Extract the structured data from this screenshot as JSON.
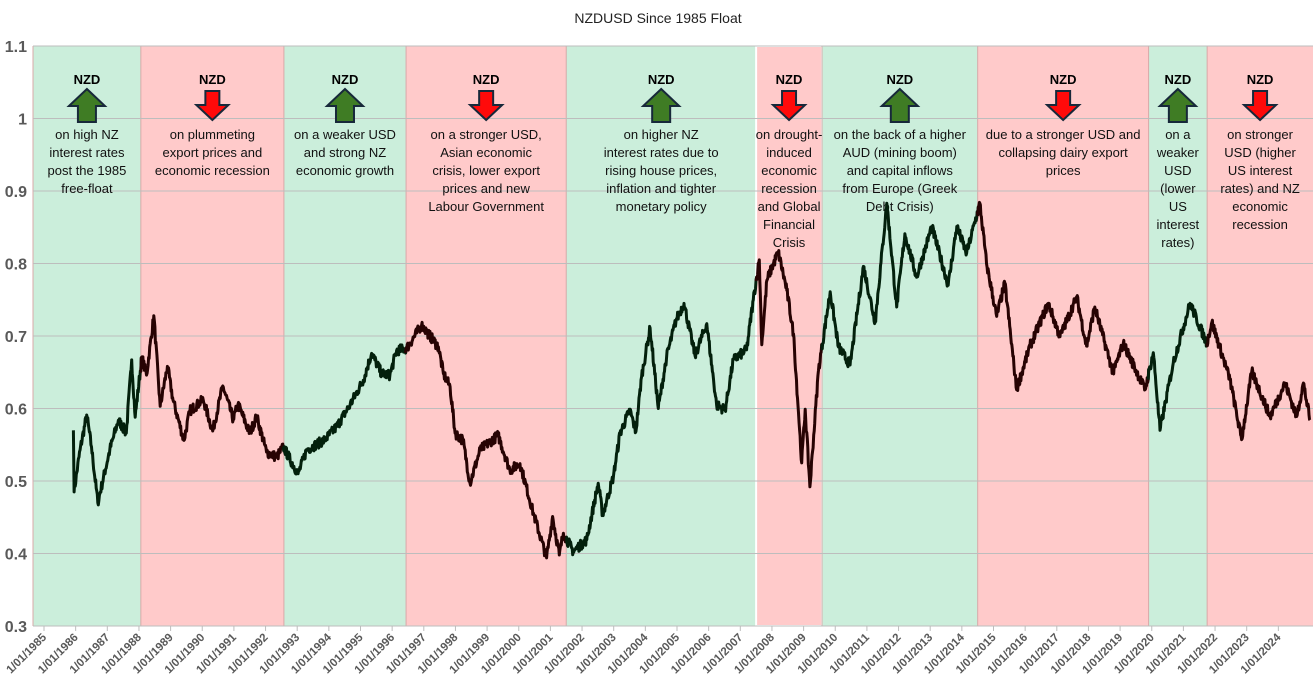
{
  "chart_data": {
    "type": "line",
    "title": "NZDUSD Since 1985 Float",
    "xlabel": "",
    "ylabel": "",
    "ylim": [
      0.3,
      1.1
    ],
    "xlim_years": [
      1984.65,
      2025.1
    ],
    "grid": true,
    "legend": "none",
    "y_ticks": [
      {
        "value": 0.3,
        "label": "0.3"
      },
      {
        "value": 0.4,
        "label": "0.4"
      },
      {
        "value": 0.5,
        "label": "0.5"
      },
      {
        "value": 0.6,
        "label": "0.6"
      },
      {
        "value": 0.7,
        "label": "0.7"
      },
      {
        "value": 0.8,
        "label": "0.8"
      },
      {
        "value": 0.9,
        "label": "0.9"
      },
      {
        "value": 1.0,
        "label": "1"
      },
      {
        "value": 1.1,
        "label": "1.1"
      }
    ],
    "x_ticks": [
      "1/01/1985",
      "1/01/1986",
      "1/01/1987",
      "1/01/1988",
      "1/01/1989",
      "1/01/1990",
      "1/01/1991",
      "1/01/1992",
      "1/01/1993",
      "1/01/1994",
      "1/01/1995",
      "1/01/1996",
      "1/01/1997",
      "1/01/1998",
      "1/01/1999",
      "1/01/2000",
      "1/01/2001",
      "1/01/2002",
      "1/01/2003",
      "1/01/2004",
      "1/01/2005",
      "1/01/2006",
      "1/01/2007",
      "1/01/2008",
      "1/01/2009",
      "1/01/2010",
      "1/01/2011",
      "1/01/2012",
      "1/01/2013",
      "1/01/2014",
      "1/01/2015",
      "1/01/2016",
      "1/01/2017",
      "1/01/2018",
      "1/01/2019",
      "1/01/2020",
      "1/01/2021",
      "1/01/2022",
      "1/01/2023",
      "1/01/2024"
    ],
    "series": [
      {
        "name": "NZDUSD",
        "points_year_value": [
          [
            1985.93,
            0.57
          ],
          [
            1985.95,
            0.485
          ],
          [
            1986.14,
            0.543
          ],
          [
            1986.35,
            0.591
          ],
          [
            1986.5,
            0.547
          ],
          [
            1986.7,
            0.47
          ],
          [
            1987.08,
            0.543
          ],
          [
            1987.35,
            0.584
          ],
          [
            1987.6,
            0.566
          ],
          [
            1987.77,
            0.667
          ],
          [
            1987.88,
            0.588
          ],
          [
            1988.09,
            0.671
          ],
          [
            1988.24,
            0.646
          ],
          [
            1988.47,
            0.728
          ],
          [
            1988.67,
            0.603
          ],
          [
            1988.9,
            0.658
          ],
          [
            1989.08,
            0.611
          ],
          [
            1989.42,
            0.556
          ],
          [
            1989.61,
            0.597
          ],
          [
            1990.03,
            0.612
          ],
          [
            1990.33,
            0.569
          ],
          [
            1990.65,
            0.631
          ],
          [
            1990.98,
            0.585
          ],
          [
            1991.13,
            0.606
          ],
          [
            1991.5,
            0.566
          ],
          [
            1991.72,
            0.589
          ],
          [
            1992.03,
            0.54
          ],
          [
            1992.35,
            0.533
          ],
          [
            1992.56,
            0.547
          ],
          [
            1993.03,
            0.51
          ],
          [
            1993.3,
            0.543
          ],
          [
            1993.88,
            0.557
          ],
          [
            1994.25,
            0.575
          ],
          [
            1994.67,
            0.605
          ],
          [
            1995.09,
            0.639
          ],
          [
            1995.35,
            0.676
          ],
          [
            1995.67,
            0.648
          ],
          [
            1995.93,
            0.646
          ],
          [
            1996.14,
            0.68
          ],
          [
            1996.46,
            0.683
          ],
          [
            1996.93,
            0.715
          ],
          [
            1997.46,
            0.685
          ],
          [
            1997.62,
            0.648
          ],
          [
            1997.83,
            0.63
          ],
          [
            1997.99,
            0.566
          ],
          [
            1998.24,
            0.556
          ],
          [
            1998.46,
            0.497
          ],
          [
            1998.78,
            0.543
          ],
          [
            1999.35,
            0.563
          ],
          [
            1999.72,
            0.515
          ],
          [
            2000.04,
            0.524
          ],
          [
            2000.46,
            0.456
          ],
          [
            2000.88,
            0.394
          ],
          [
            2001.07,
            0.451
          ],
          [
            2001.28,
            0.398
          ],
          [
            2001.41,
            0.428
          ],
          [
            2001.72,
            0.403
          ],
          [
            2002.15,
            0.419
          ],
          [
            2002.51,
            0.497
          ],
          [
            2002.65,
            0.453
          ],
          [
            2002.99,
            0.506
          ],
          [
            2003.2,
            0.566
          ],
          [
            2003.51,
            0.598
          ],
          [
            2003.7,
            0.568
          ],
          [
            2003.88,
            0.644
          ],
          [
            2004.15,
            0.711
          ],
          [
            2004.41,
            0.6
          ],
          [
            2004.67,
            0.671
          ],
          [
            2004.97,
            0.722
          ],
          [
            2005.22,
            0.745
          ],
          [
            2005.57,
            0.673
          ],
          [
            2005.94,
            0.717
          ],
          [
            2006.25,
            0.605
          ],
          [
            2006.52,
            0.598
          ],
          [
            2006.78,
            0.667
          ],
          [
            2007.2,
            0.681
          ],
          [
            2007.41,
            0.75
          ],
          [
            2007.6,
            0.805
          ],
          [
            2007.68,
            0.688
          ],
          [
            2007.84,
            0.777
          ],
          [
            2008.2,
            0.816
          ],
          [
            2008.47,
            0.763
          ],
          [
            2008.68,
            0.703
          ],
          [
            2008.84,
            0.594
          ],
          [
            2008.94,
            0.525
          ],
          [
            2009.05,
            0.599
          ],
          [
            2009.2,
            0.492
          ],
          [
            2009.47,
            0.653
          ],
          [
            2009.84,
            0.761
          ],
          [
            2010.1,
            0.685
          ],
          [
            2010.47,
            0.66
          ],
          [
            2010.89,
            0.796
          ],
          [
            2011.26,
            0.719
          ],
          [
            2011.63,
            0.883
          ],
          [
            2011.94,
            0.74
          ],
          [
            2012.2,
            0.841
          ],
          [
            2012.57,
            0.781
          ],
          [
            2013.05,
            0.851
          ],
          [
            2013.57,
            0.77
          ],
          [
            2013.84,
            0.851
          ],
          [
            2014.15,
            0.814
          ],
          [
            2014.57,
            0.883
          ],
          [
            2014.78,
            0.8
          ],
          [
            2015.1,
            0.727
          ],
          [
            2015.36,
            0.773
          ],
          [
            2015.73,
            0.626
          ],
          [
            2016.15,
            0.686
          ],
          [
            2016.73,
            0.745
          ],
          [
            2017.1,
            0.699
          ],
          [
            2017.63,
            0.754
          ],
          [
            2017.94,
            0.686
          ],
          [
            2018.2,
            0.74
          ],
          [
            2018.78,
            0.649
          ],
          [
            2019.1,
            0.69
          ],
          [
            2019.79,
            0.626
          ],
          [
            2020.05,
            0.677
          ],
          [
            2020.26,
            0.57
          ],
          [
            2020.68,
            0.663
          ],
          [
            2021.21,
            0.745
          ],
          [
            2021.74,
            0.69
          ],
          [
            2021.9,
            0.719
          ],
          [
            2022.47,
            0.64
          ],
          [
            2022.84,
            0.557
          ],
          [
            2023.16,
            0.651
          ],
          [
            2023.74,
            0.589
          ],
          [
            2024.21,
            0.635
          ],
          [
            2024.58,
            0.589
          ],
          [
            2024.79,
            0.635
          ],
          [
            2025.0,
            0.584
          ]
        ]
      }
    ],
    "bands": [
      {
        "start": 1984.65,
        "end": 1988.06,
        "direction": "up",
        "label": "NZD",
        "text": [
          "on high NZ",
          "interest rates",
          "post the 1985",
          "free-float"
        ]
      },
      {
        "start": 1988.06,
        "end": 1992.58,
        "direction": "down",
        "label": "NZD",
        "text": [
          "on plummeting",
          "export prices and",
          "economic recession"
        ]
      },
      {
        "start": 1992.58,
        "end": 1996.44,
        "direction": "up",
        "label": "NZD",
        "text": [
          "on a weaker USD",
          "and strong NZ",
          "economic growth"
        ]
      },
      {
        "start": 1996.44,
        "end": 2001.5,
        "direction": "down",
        "label": "NZD",
        "text": [
          "on a stronger USD,",
          "Asian economic",
          "crisis, lower export",
          "prices and new",
          "Labour Government"
        ]
      },
      {
        "start": 2001.5,
        "end": 2007.5,
        "direction": "up",
        "label": "NZD",
        "text": [
          "on higher NZ",
          "interest rates due to",
          "rising house prices,",
          "inflation and tighter",
          "monetary policy"
        ]
      },
      {
        "start": 2007.5,
        "end": 2009.58,
        "direction": "down",
        "label": "NZD",
        "text": [
          "on drought-",
          "induced",
          "economic",
          "recession",
          "and Global",
          "Financial",
          "Crisis"
        ]
      },
      {
        "start": 2009.58,
        "end": 2014.5,
        "direction": "up",
        "label": "NZD",
        "text": [
          "on the back of a higher",
          "AUD (mining boom)",
          "and capital inflows",
          "from Europe (Greek",
          "Debt Crisis)"
        ]
      },
      {
        "start": 2014.5,
        "end": 2019.9,
        "direction": "down",
        "label": "NZD",
        "text": [
          "due to a stronger USD and",
          "collapsing dairy export",
          "prices"
        ]
      },
      {
        "start": 2019.9,
        "end": 2021.75,
        "direction": "up",
        "label": "NZD",
        "text": [
          "on a",
          "weaker",
          "USD",
          "(lower",
          "US",
          "interest",
          "rates)"
        ]
      },
      {
        "start": 2021.75,
        "end": 2025.1,
        "direction": "down",
        "label": "NZD",
        "text": [
          "on stronger",
          "USD (higher",
          "US interest",
          "rates) and NZ",
          "economic",
          "recession"
        ]
      }
    ],
    "colors": {
      "up_band": "#cbeedb",
      "down_band": "#ffcaca",
      "up_line": "#03200c",
      "down_line": "#270303",
      "up_arrow": "#3f7c24",
      "down_arrow": "#ff0a0a",
      "arrow_outline": "#17283a"
    }
  }
}
